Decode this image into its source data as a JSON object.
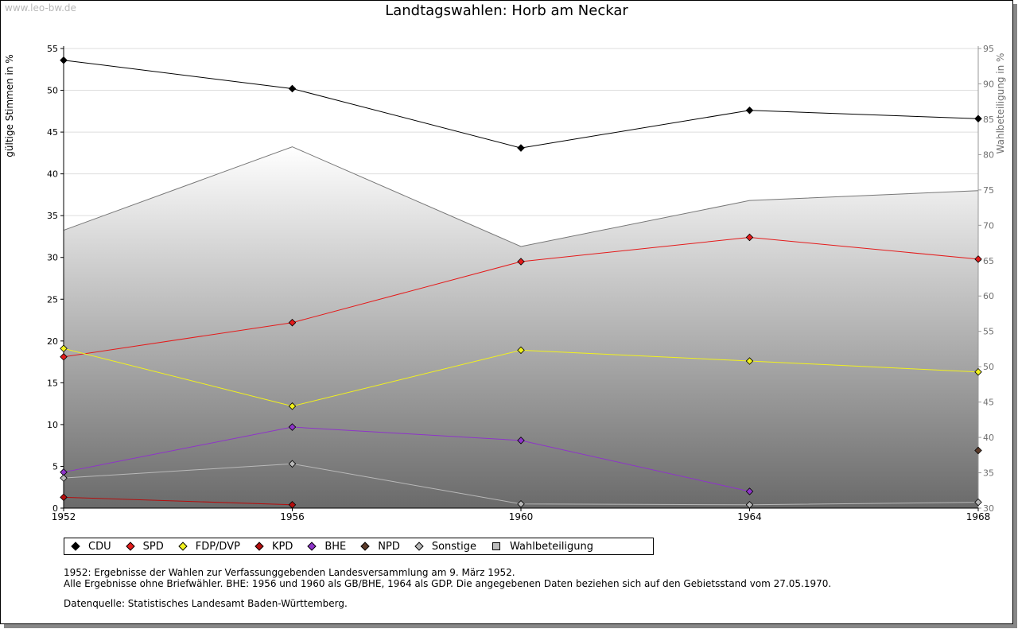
{
  "watermark": "www.leo-bw.de",
  "chart_data": {
    "type": "line",
    "title": "Landtagswahlen: Horb am Neckar",
    "ylabel": "gültige Stimmen in %",
    "y2label": "Wahlbeteiligung in %",
    "x": [
      "1952",
      "1956",
      "1960",
      "1964",
      "1968"
    ],
    "ylim": [
      0,
      55
    ],
    "y2lim": [
      30,
      95
    ],
    "yticks": [
      0,
      5,
      10,
      15,
      20,
      25,
      30,
      35,
      40,
      45,
      50,
      55
    ],
    "y2ticks": [
      30,
      35,
      40,
      45,
      50,
      55,
      60,
      65,
      70,
      75,
      80,
      85,
      90,
      95
    ],
    "grid": true,
    "series": [
      {
        "name": "CDU",
        "color": "#000000",
        "values": [
          53.6,
          50.2,
          43.1,
          47.6,
          46.6
        ]
      },
      {
        "name": "SPD",
        "color": "#e41b1b",
        "values": [
          18.1,
          22.2,
          29.5,
          32.4,
          29.8
        ]
      },
      {
        "name": "FDP/DVP",
        "color": "#f2f21c",
        "values": [
          19.1,
          12.2,
          18.9,
          17.6,
          16.3
        ]
      },
      {
        "name": "KPD",
        "color": "#b50d0d",
        "values": [
          1.3,
          0.4,
          null,
          null,
          null
        ]
      },
      {
        "name": "BHE",
        "color": "#8e34c9",
        "values": [
          4.3,
          9.7,
          8.1,
          2.0,
          null
        ]
      },
      {
        "name": "NPD",
        "color": "#5c3b2a",
        "values": [
          null,
          null,
          null,
          null,
          6.9
        ]
      },
      {
        "name": "Sonstige",
        "color": "#b9b9b9",
        "values": [
          3.6,
          5.3,
          0.5,
          0.4,
          0.7
        ]
      }
    ],
    "turnout": {
      "name": "Wahlbeteiligung",
      "axis": "right",
      "values": [
        69.3,
        81.1,
        67.0,
        73.5,
        74.9
      ]
    }
  },
  "notes": [
    "1952: Ergebnisse der Wahlen zur Verfassunggebenden Landesversammlung am 9. März 1952.",
    "Alle Ergebnisse ohne Briefwähler. BHE: 1956 und 1960 als GB/BHE, 1964 als GDP. Die angegebenen Daten beziehen sich auf den Gebietsstand vom 27.05.1970."
  ],
  "source": "Datenquelle: Statistisches Landesamt Baden-Württemberg."
}
